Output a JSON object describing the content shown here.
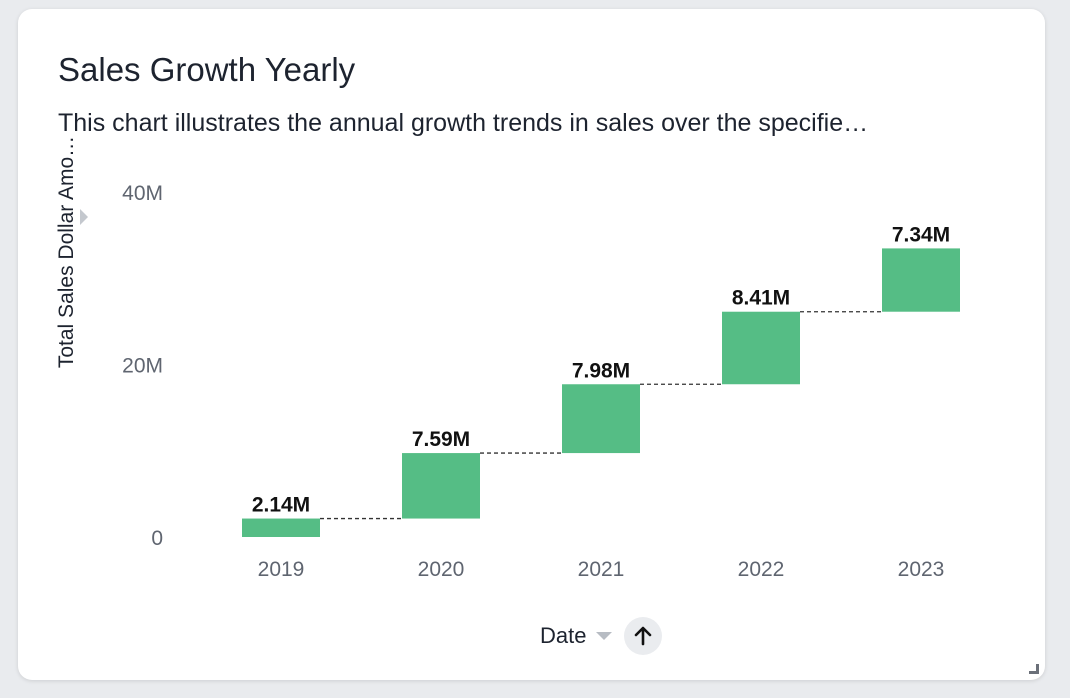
{
  "card": {
    "title": "Sales Growth Yearly",
    "subtitle": "This chart illustrates the annual growth trends in sales over the specifie…"
  },
  "axis_controls": {
    "x_title": "Date",
    "sort_icon": "arrow-up-icon",
    "dropdown_icon": "caret-down-icon",
    "collapse_icon": "caret-right-icon",
    "resize_icon": "resize-handle-icon"
  },
  "chart_data": {
    "type": "bar",
    "subtype": "waterfall",
    "xlabel": "Date",
    "ylabel": "Total Sales Dollar Amo…",
    "categories": [
      "2019",
      "2020",
      "2021",
      "2022",
      "2023"
    ],
    "values": [
      2.14,
      7.59,
      7.98,
      8.41,
      7.34
    ],
    "value_labels": [
      "2.14M",
      "7.59M",
      "7.98M",
      "8.41M",
      "7.34M"
    ],
    "value_unit": "M",
    "ylim": [
      0,
      40
    ],
    "yticks": [
      {
        "value": 0,
        "label": "0"
      },
      {
        "value": 20,
        "label": "20M"
      },
      {
        "value": 40,
        "label": "40M"
      }
    ],
    "bar_color": "#55bd85",
    "connector_style": "dashed",
    "grid": false
  }
}
